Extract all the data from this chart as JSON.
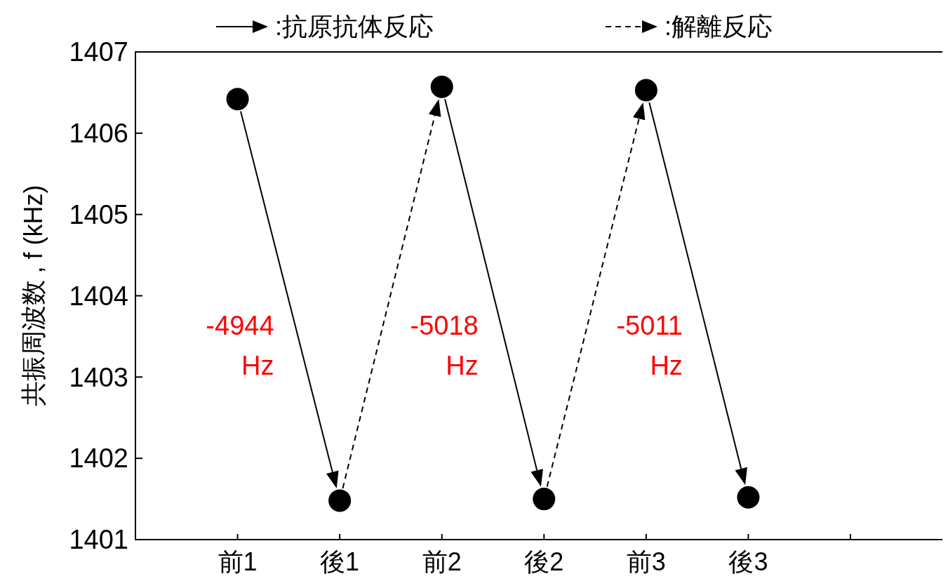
{
  "chart_data": {
    "type": "scatter",
    "categories": [
      "前1",
      "後1",
      "前2",
      "後2",
      "前3",
      "後3",
      null
    ],
    "ylabel": "共振周波数 , f (kHz)",
    "ylim": [
      1401,
      1407
    ],
    "yticks": [
      1401,
      1402,
      1403,
      1404,
      1405,
      1406,
      1407
    ],
    "grid": false,
    "marker": "circle",
    "series": [
      {
        "color": "#000000",
        "values": [
          1406.42,
          1401.48,
          1406.57,
          1401.5,
          1406.53,
          1401.52,
          null
        ]
      }
    ],
    "annotations": [
      ":抗原抗体反応",
      ":解離反応",
      "-4944 Hz",
      "-5018 Hz",
      "-5011 Hz"
    ]
  }
}
